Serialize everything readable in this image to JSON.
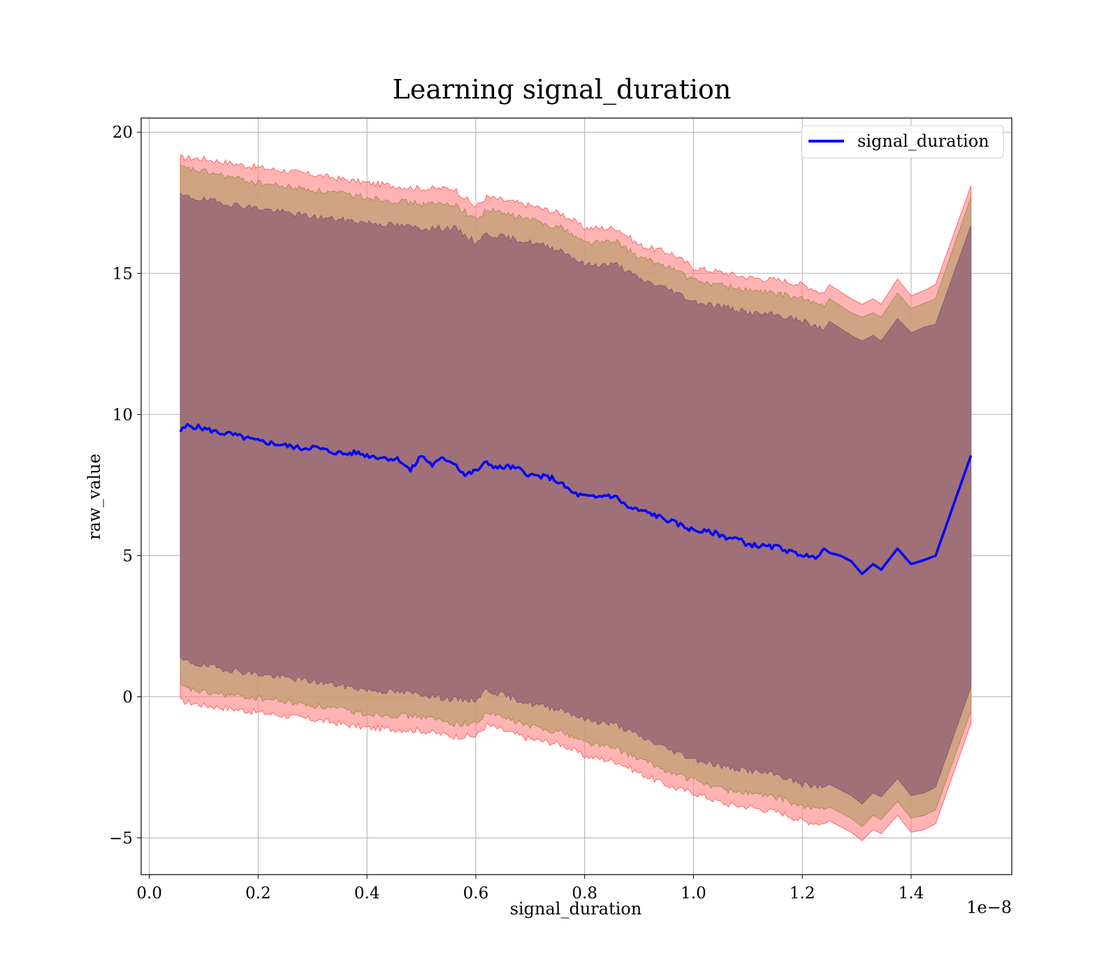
{
  "chart_data": {
    "type": "area",
    "title": "Learning signal_duration",
    "xlabel": "signal_duration",
    "ylabel": "raw_value",
    "x_offset_label": "1e−8",
    "x_scale": 1e-08,
    "xlim": [
      -0.015,
      1.585
    ],
    "ylim": [
      -6.3,
      20.5
    ],
    "x_ticks": [
      0.0,
      0.2,
      0.4,
      0.6,
      0.8,
      1.0,
      1.2,
      1.4
    ],
    "x_tick_labels": [
      "0.0",
      "0.2",
      "0.4",
      "0.6",
      "0.8",
      "1.0",
      "1.2",
      "1.4"
    ],
    "y_ticks": [
      -5,
      0,
      5,
      10,
      15,
      20
    ],
    "y_tick_labels": [
      "−5",
      "0",
      "5",
      "10",
      "15",
      "20"
    ],
    "grid": true,
    "legend_position": "top-right",
    "legend": [
      {
        "label": "signal_duration",
        "color": "#0000ff"
      }
    ],
    "colors": {
      "line": "#0000ff",
      "band_outer": "#ff8080",
      "band_mid": "#c8a07a",
      "band_inner": "#a07078"
    },
    "series": [
      {
        "name": "signal_duration",
        "x": [
          0.057,
          0.07,
          0.09,
          0.11,
          0.13,
          0.15,
          0.17,
          0.2,
          0.22,
          0.25,
          0.28,
          0.3,
          0.33,
          0.36,
          0.38,
          0.4,
          0.42,
          0.44,
          0.46,
          0.48,
          0.5,
          0.52,
          0.54,
          0.56,
          0.58,
          0.6,
          0.62,
          0.64,
          0.66,
          0.68,
          0.7,
          0.72,
          0.74,
          0.76,
          0.78,
          0.8,
          0.82,
          0.84,
          0.86,
          0.88,
          0.9,
          0.92,
          0.94,
          0.96,
          0.98,
          1.0,
          1.02,
          1.04,
          1.06,
          1.08,
          1.1,
          1.12,
          1.14,
          1.16,
          1.18,
          1.2,
          1.22,
          1.24,
          1.25,
          1.27,
          1.29,
          1.31,
          1.33,
          1.345,
          1.375,
          1.4,
          1.425,
          1.445,
          1.51
        ],
        "y": [
          9.4,
          9.6,
          9.55,
          9.45,
          9.35,
          9.3,
          9.2,
          9.05,
          9.0,
          8.9,
          8.8,
          8.85,
          8.7,
          8.6,
          8.65,
          8.55,
          8.5,
          8.45,
          8.4,
          8.0,
          8.55,
          8.2,
          8.45,
          8.3,
          7.85,
          8.0,
          8.3,
          8.1,
          8.15,
          8.05,
          7.85,
          7.8,
          7.75,
          7.5,
          7.2,
          7.1,
          7.05,
          7.15,
          7.05,
          6.7,
          6.6,
          6.5,
          6.35,
          6.2,
          6.05,
          5.9,
          5.85,
          5.8,
          5.65,
          5.6,
          5.4,
          5.35,
          5.3,
          5.3,
          5.1,
          5.05,
          4.9,
          5.25,
          5.1,
          5.0,
          4.8,
          4.35,
          4.7,
          4.5,
          5.25,
          4.7,
          4.85,
          5.0,
          8.55
        ]
      }
    ],
    "bands": [
      {
        "name": "outer",
        "x": [
          0.057,
          0.1,
          0.2,
          0.3,
          0.4,
          0.5,
          0.56,
          0.6,
          0.62,
          0.7,
          0.76,
          0.8,
          0.86,
          0.9,
          0.96,
          1.0,
          1.06,
          1.1,
          1.16,
          1.2,
          1.24,
          1.25,
          1.29,
          1.31,
          1.33,
          1.345,
          1.375,
          1.4,
          1.425,
          1.445,
          1.51
        ],
        "upper": [
          19.1,
          19.05,
          18.75,
          18.5,
          18.2,
          18.0,
          18.0,
          17.35,
          17.7,
          17.4,
          17.1,
          16.6,
          16.6,
          16.0,
          15.7,
          15.2,
          15.0,
          14.85,
          14.75,
          14.6,
          14.3,
          14.6,
          14.1,
          13.9,
          14.1,
          13.9,
          14.8,
          14.2,
          14.4,
          14.6,
          18.1
        ],
        "lower": [
          -0.15,
          -0.3,
          -0.55,
          -0.8,
          -1.1,
          -1.2,
          -1.4,
          -1.4,
          -1.0,
          -1.5,
          -1.7,
          -2.1,
          -2.3,
          -2.7,
          -3.2,
          -3.4,
          -3.8,
          -3.9,
          -4.1,
          -4.4,
          -4.5,
          -4.4,
          -4.8,
          -5.1,
          -4.7,
          -4.85,
          -4.2,
          -4.8,
          -4.7,
          -4.5,
          -0.95
        ]
      },
      {
        "name": "middle",
        "x": [
          0.057,
          0.1,
          0.2,
          0.3,
          0.4,
          0.5,
          0.56,
          0.6,
          0.62,
          0.7,
          0.76,
          0.8,
          0.86,
          0.9,
          0.96,
          1.0,
          1.06,
          1.1,
          1.16,
          1.2,
          1.24,
          1.25,
          1.29,
          1.31,
          1.33,
          1.345,
          1.375,
          1.4,
          1.425,
          1.445,
          1.51
        ],
        "upper": [
          18.75,
          18.6,
          18.2,
          17.95,
          17.7,
          17.45,
          17.45,
          16.9,
          17.25,
          16.9,
          16.6,
          16.1,
          16.1,
          15.55,
          15.2,
          14.75,
          14.55,
          14.4,
          14.25,
          14.1,
          13.8,
          14.1,
          13.6,
          13.45,
          13.6,
          13.45,
          14.3,
          13.75,
          13.95,
          14.1,
          17.7
        ],
        "lower": [
          0.35,
          0.15,
          -0.05,
          -0.3,
          -0.6,
          -0.7,
          -0.95,
          -0.95,
          -0.55,
          -1.05,
          -1.25,
          -1.6,
          -1.85,
          -2.2,
          -2.7,
          -2.95,
          -3.3,
          -3.4,
          -3.6,
          -3.9,
          -4.0,
          -3.9,
          -4.3,
          -4.6,
          -4.2,
          -4.35,
          -3.7,
          -4.3,
          -4.2,
          -4.0,
          -0.5
        ]
      },
      {
        "name": "inner",
        "x": [
          0.057,
          0.1,
          0.2,
          0.3,
          0.4,
          0.5,
          0.56,
          0.6,
          0.62,
          0.7,
          0.76,
          0.8,
          0.86,
          0.9,
          0.96,
          1.0,
          1.06,
          1.1,
          1.16,
          1.2,
          1.24,
          1.25,
          1.29,
          1.31,
          1.33,
          1.345,
          1.375,
          1.4,
          1.425,
          1.445,
          1.51
        ],
        "upper": [
          17.75,
          17.6,
          17.3,
          17.0,
          16.8,
          16.6,
          16.6,
          16.1,
          16.4,
          16.1,
          15.8,
          15.3,
          15.3,
          14.8,
          14.4,
          14.0,
          13.8,
          13.6,
          13.5,
          13.3,
          13.0,
          13.3,
          12.8,
          12.6,
          12.8,
          12.6,
          13.4,
          12.9,
          13.1,
          13.2,
          16.7
        ],
        "lower": [
          1.3,
          1.1,
          0.8,
          0.55,
          0.25,
          0.1,
          -0.1,
          -0.1,
          0.25,
          -0.25,
          -0.45,
          -0.8,
          -1.0,
          -1.4,
          -1.9,
          -2.2,
          -2.5,
          -2.6,
          -2.8,
          -3.1,
          -3.2,
          -3.1,
          -3.5,
          -3.8,
          -3.4,
          -3.55,
          -2.9,
          -3.5,
          -3.4,
          -3.2,
          0.35
        ]
      }
    ]
  }
}
